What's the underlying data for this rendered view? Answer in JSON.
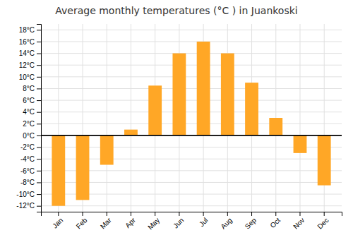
{
  "chart_data": {
    "type": "bar",
    "title": "Average monthly temperatures (°C ) in Juankoski",
    "categories": [
      "Jan",
      "Feb",
      "Mar",
      "Apr",
      "May",
      "Jun",
      "Jul",
      "Aug",
      "Sep",
      "Oct",
      "Nov",
      "Dec"
    ],
    "values": [
      -12,
      -11,
      -5,
      1,
      8.5,
      14,
      16,
      14,
      9,
      3,
      -3,
      -8.5
    ],
    "color": "#FFA726",
    "ylim": [
      -13,
      19
    ],
    "yticks": [
      {
        "value": -12,
        "label": "-12°C"
      },
      {
        "value": -10,
        "label": "-10°C"
      },
      {
        "value": -8,
        "label": "-8°C"
      },
      {
        "value": -6,
        "label": "-6°C"
      },
      {
        "value": -4,
        "label": "-4°C"
      },
      {
        "value": -2,
        "label": "-2°C"
      },
      {
        "value": 0,
        "label": "0°C"
      },
      {
        "value": 2,
        "label": "2°C"
      },
      {
        "value": 4,
        "label": "4°C"
      },
      {
        "value": 6,
        "label": "6°C"
      },
      {
        "value": 8,
        "label": "8°C"
      },
      {
        "value": 10,
        "label": "10°C"
      },
      {
        "value": 12,
        "label": "12°C"
      },
      {
        "value": 14,
        "label": "14°C"
      },
      {
        "value": 16,
        "label": "16°C"
      },
      {
        "value": 18,
        "label": "18°C"
      }
    ],
    "grid": true
  }
}
